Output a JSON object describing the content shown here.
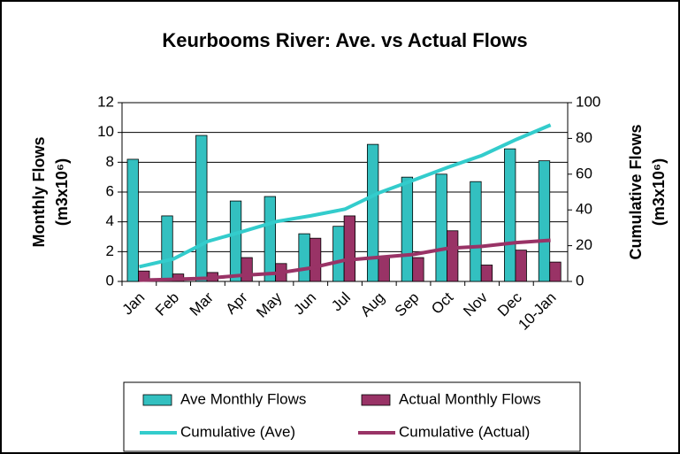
{
  "chart_data": {
    "type": "bar",
    "title": "Keurbooms River: Ave. vs Actual Flows",
    "y_label": "Monthly Flows",
    "y_label_unit": "(m3x10⁶)",
    "y2_label": "Cumulative Flows",
    "y2_label_unit": "(m3x10⁶)",
    "categories": [
      "Jan",
      "Feb",
      "Mar",
      "Apr",
      "May",
      "Jun",
      "Jul",
      "Aug",
      "Sep",
      "Oct",
      "Nov",
      "Dec",
      "10-Jan"
    ],
    "series": [
      {
        "name": "Ave Monthly Flows",
        "type": "bar",
        "color": "#33c0c0",
        "values": [
          8.2,
          4.4,
          9.8,
          5.4,
          5.7,
          3.2,
          3.7,
          9.2,
          7.0,
          7.2,
          6.7,
          8.9,
          8.1
        ]
      },
      {
        "name": "Actual Monthly Flows",
        "type": "bar",
        "color": "#993366",
        "values": [
          0.7,
          0.5,
          0.6,
          1.6,
          1.2,
          2.9,
          4.4,
          1.6,
          1.6,
          3.4,
          1.1,
          2.1,
          1.3
        ]
      },
      {
        "name": "Cumulative (Ave)",
        "type": "line",
        "axis": "y2",
        "color": "#33cccc",
        "values": [
          8.2,
          12.6,
          22.4,
          27.8,
          33.5,
          36.7,
          40.4,
          49.6,
          56.6,
          63.8,
          70.5,
          79.4,
          87.5
        ]
      },
      {
        "name": "Cumulative (Actual)",
        "type": "line",
        "axis": "y2",
        "color": "#993366",
        "values": [
          0.7,
          1.2,
          1.8,
          3.4,
          4.6,
          7.5,
          11.9,
          13.5,
          15.1,
          18.5,
          19.6,
          21.7,
          23.0
        ]
      }
    ],
    "ylim": [
      0,
      12
    ],
    "yticks": [
      0,
      2,
      4,
      6,
      8,
      10,
      12
    ],
    "y2lim": [
      0,
      100
    ],
    "y2ticks": [
      0,
      20,
      40,
      60,
      80,
      100
    ]
  }
}
